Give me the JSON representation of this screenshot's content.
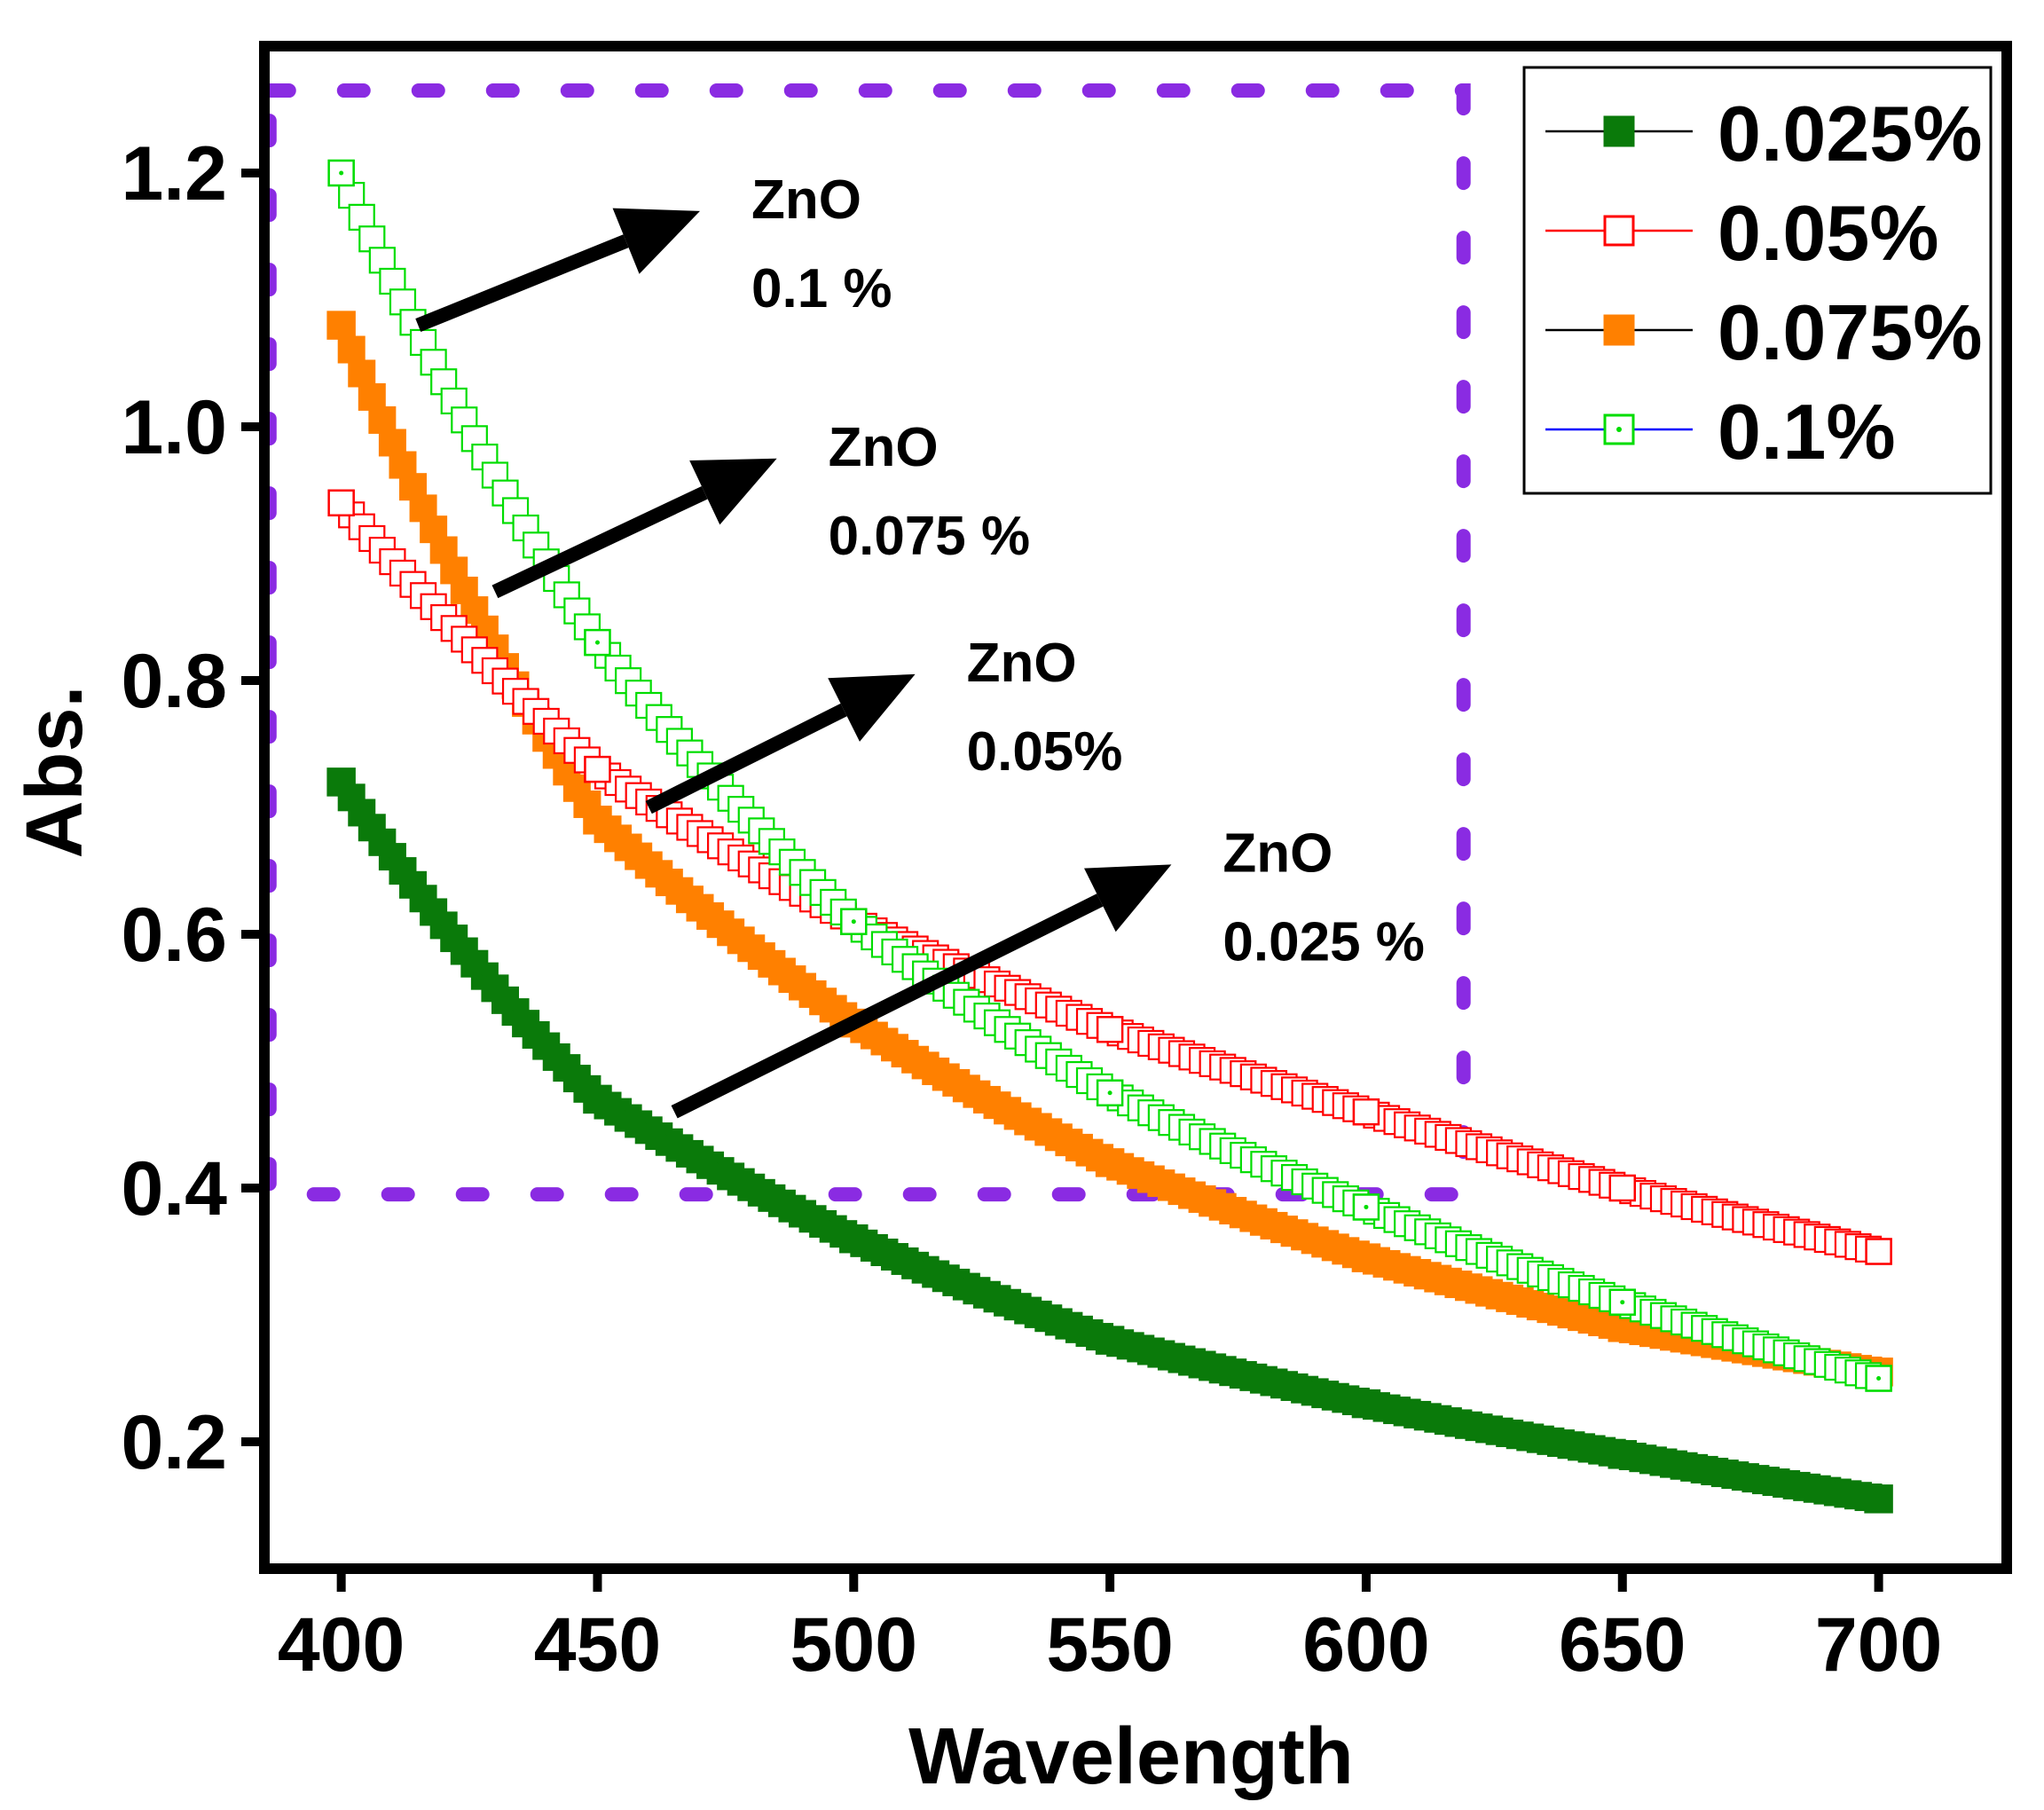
{
  "chart_data": {
    "type": "scatter",
    "xlabel": "Wavelength",
    "ylabel": "Abs.",
    "xlim": [
      385,
      725
    ],
    "ylim": [
      0.1,
      1.3
    ],
    "x_ticks": [
      {
        "value": 400,
        "label": "400"
      },
      {
        "value": 450,
        "label": "450"
      },
      {
        "value": 500,
        "label": "500"
      },
      {
        "value": 550,
        "label": "550"
      },
      {
        "value": 600,
        "label": "600"
      },
      {
        "value": 650,
        "label": "650"
      },
      {
        "value": 700,
        "label": "700"
      }
    ],
    "y_ticks": [
      {
        "value": 0.2,
        "label": "0.2"
      },
      {
        "value": 0.4,
        "label": "0.4"
      },
      {
        "value": 0.6,
        "label": "0.6"
      },
      {
        "value": 0.8,
        "label": "0.8"
      },
      {
        "value": 1.0,
        "label": "1.0"
      },
      {
        "value": 1.2,
        "label": "1.2"
      }
    ],
    "grid": false,
    "legend_position": "top-right",
    "series": [
      {
        "name": "0.025%",
        "color": "#0a7a0a",
        "line_color": "#000000",
        "marker": "filled-square",
        "x": [
          400,
          450,
          500,
          550,
          600,
          650,
          700
        ],
        "values": [
          0.72,
          0.47,
          0.36,
          0.28,
          0.23,
          0.19,
          0.155
        ]
      },
      {
        "name": "0.05%",
        "color": "#ff0000",
        "line_color": "#ff0000",
        "marker": "open-square",
        "x": [
          400,
          450,
          500,
          550,
          600,
          650,
          700
        ],
        "values": [
          0.94,
          0.73,
          0.61,
          0.525,
          0.46,
          0.4,
          0.35
        ]
      },
      {
        "name": "0.075%",
        "color": "#ff8000",
        "line_color": "#000000",
        "marker": "filled-square",
        "x": [
          400,
          450,
          500,
          550,
          600,
          650,
          700
        ],
        "values": [
          1.08,
          0.69,
          0.53,
          0.42,
          0.345,
          0.29,
          0.255
        ]
      },
      {
        "name": "0.1%",
        "color": "#00dd00",
        "line_color": "#0000ff",
        "marker": "open-square-dot",
        "x": [
          400,
          450,
          500,
          550,
          600,
          650,
          700
        ],
        "values": [
          1.2,
          0.83,
          0.61,
          0.475,
          0.385,
          0.31,
          0.25
        ]
      }
    ],
    "annotations": [
      {
        "line1": "ZnO",
        "line2": "0.1 %",
        "arrow_from": [
          415,
          1.08
        ],
        "arrow_to": [
          470,
          1.17
        ]
      },
      {
        "line1": "ZnO",
        "line2": "0.075 %",
        "arrow_from": [
          430,
          0.87
        ],
        "arrow_to": [
          485,
          0.975
        ]
      },
      {
        "line1": "ZnO",
        "line2": "0.05%",
        "arrow_from": [
          460,
          0.7
        ],
        "arrow_to": [
          512,
          0.805
        ]
      },
      {
        "line1": "ZnO",
        "line2": "0.025 %",
        "arrow_from": [
          465,
          0.46
        ],
        "arrow_to": [
          562,
          0.655
        ]
      }
    ],
    "highlight_box": {
      "color": "#8a2be2",
      "style": "dotted",
      "x_range": [
        386,
        619
      ],
      "y_range": [
        0.395,
        1.265
      ]
    }
  }
}
